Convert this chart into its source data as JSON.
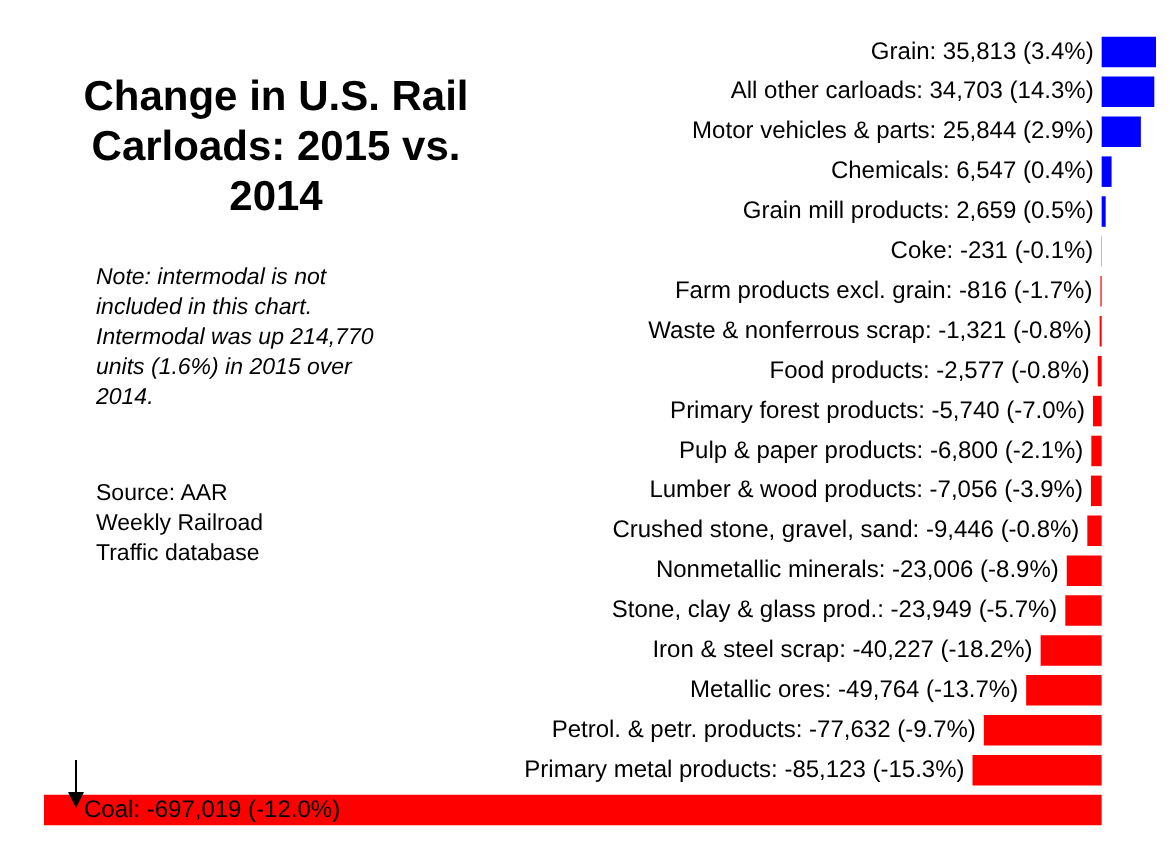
{
  "chart_data": {
    "type": "bar",
    "orientation": "horizontal",
    "title": "Change in U.S. Rail Carloads: 2015 vs. 2014",
    "categories": [
      "Grain",
      "All other carloads",
      "Motor vehicles & parts",
      "Chemicals",
      "Grain mill products",
      "Coke",
      "Farm products excl. grain",
      "Waste & nonferrous scrap",
      "Food products",
      "Primary forest products",
      "Pulp & paper products",
      "Lumber & wood products",
      "Crushed stone, gravel, sand",
      "Nonmetallic minerals",
      "Stone, clay & glass prod.",
      "Iron & steel scrap",
      "Metallic ores",
      "Petrol. & petr. products",
      "Primary metal products",
      "Coal"
    ],
    "values": [
      35813,
      34703,
      25844,
      6547,
      2659,
      -231,
      -816,
      -1321,
      -2577,
      -5740,
      -6800,
      -7056,
      -9446,
      -23006,
      -23949,
      -40227,
      -49764,
      -77632,
      -85123,
      -697019
    ],
    "value_labels": [
      ": 35,813 (3.4%)",
      ": 34,703 (14.3%)",
      ": 25,844 (2.9%)",
      ": 6,547 (0.4%)",
      ": 2,659 (0.5%)",
      ": -231 (-0.1%)",
      ": -816 (-1.7%)",
      ": -1,321 (-0.8%)",
      ": -2,577 (-0.8%)",
      ": -5,740 (-7.0%)",
      ": -6,800 (-2.1%)",
      ": -7,056 (-3.9%)",
      ": -9,446 (-0.8%)",
      ": -23,006 (-8.9%)",
      ": -23,949 (-5.7%)",
      ": -40,227 (-18.2%)",
      ": -49,764 (-13.7%)",
      ": -77,632 (-9.7%)",
      ": -85,123 (-15.3%)",
      ": -697,019 (-12.0%)"
    ],
    "colors": [
      "#0000ff",
      "#0000ff",
      "#0000ff",
      "#0000ff",
      "#0000ff",
      "#ff0000",
      "#ff0000",
      "#ff0000",
      "#ff0000",
      "#ff0000",
      "#ff0000",
      "#ff0000",
      "#ff0000",
      "#ff0000",
      "#ff0000",
      "#ff0000",
      "#ff0000",
      "#ff0000",
      "#ff0000",
      "#ff0000"
    ],
    "annotations": [
      "Note: intermodal is not included in this chart. Intermodal was up 214,770 units (1.6%) in 2015 over 2014.",
      "Source: AAR Weekly Railroad Traffic database"
    ],
    "legend": false
  }
}
